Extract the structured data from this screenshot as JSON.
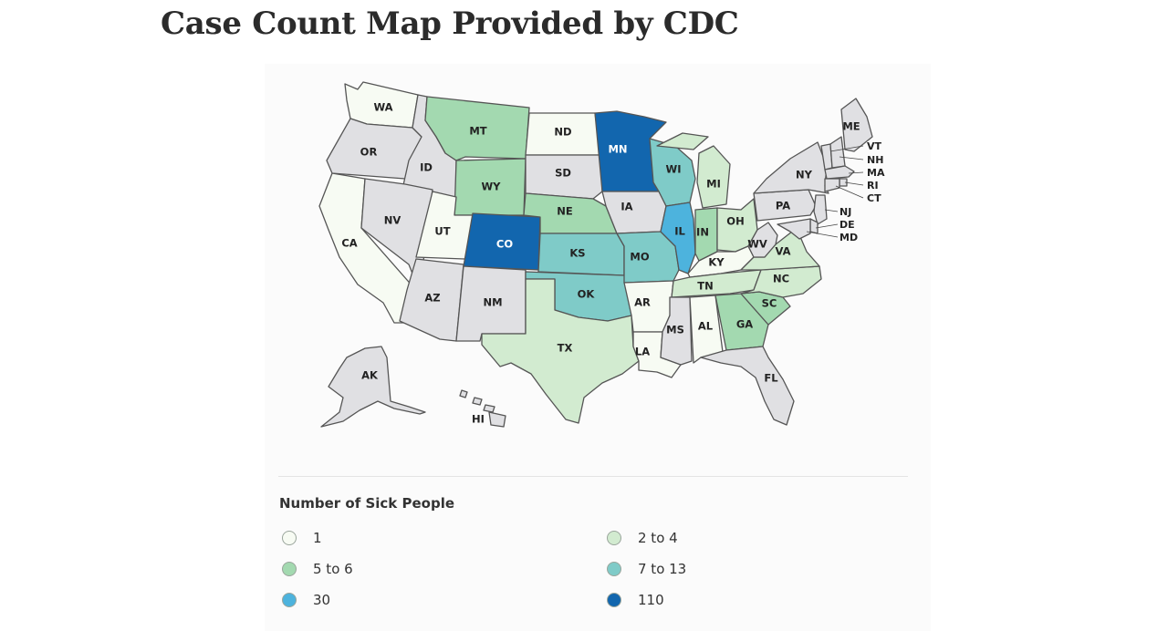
{
  "title": "Case Count Map Provided by CDC",
  "legend": {
    "title": "Number of Sick People",
    "items": [
      {
        "label": "1",
        "color": "#f7fbf3"
      },
      {
        "label": "2 to 4",
        "color": "#d2ebd0"
      },
      {
        "label": "5 to 6",
        "color": "#a3d9b0"
      },
      {
        "label": "7 to 13",
        "color": "#7fcbc8"
      },
      {
        "label": "30",
        "color": "#4db3dd"
      },
      {
        "label": "110",
        "color": "#1266ae"
      }
    ],
    "no_cases_color": "#e0e0e3"
  },
  "states": [
    {
      "abbr": "WA",
      "bin": "1"
    },
    {
      "abbr": "OR",
      "bin": "none"
    },
    {
      "abbr": "CA",
      "bin": "1"
    },
    {
      "abbr": "ID",
      "bin": "none"
    },
    {
      "abbr": "NV",
      "bin": "none"
    },
    {
      "abbr": "MT",
      "bin": "5 to 6"
    },
    {
      "abbr": "WY",
      "bin": "5 to 6"
    },
    {
      "abbr": "UT",
      "bin": "1"
    },
    {
      "abbr": "CO",
      "bin": "110"
    },
    {
      "abbr": "AZ",
      "bin": "none"
    },
    {
      "abbr": "NM",
      "bin": "none"
    },
    {
      "abbr": "ND",
      "bin": "1"
    },
    {
      "abbr": "SD",
      "bin": "none"
    },
    {
      "abbr": "NE",
      "bin": "5 to 6"
    },
    {
      "abbr": "KS",
      "bin": "7 to 13"
    },
    {
      "abbr": "OK",
      "bin": "7 to 13"
    },
    {
      "abbr": "TX",
      "bin": "2 to 4"
    },
    {
      "abbr": "MN",
      "bin": "110"
    },
    {
      "abbr": "IA",
      "bin": "none"
    },
    {
      "abbr": "MO",
      "bin": "7 to 13"
    },
    {
      "abbr": "AR",
      "bin": "1"
    },
    {
      "abbr": "LA",
      "bin": "1"
    },
    {
      "abbr": "WI",
      "bin": "7 to 13"
    },
    {
      "abbr": "IL",
      "bin": "30"
    },
    {
      "abbr": "MI",
      "bin": "2 to 4"
    },
    {
      "abbr": "IN",
      "bin": "5 to 6"
    },
    {
      "abbr": "OH",
      "bin": "2 to 4"
    },
    {
      "abbr": "KY",
      "bin": "1"
    },
    {
      "abbr": "TN",
      "bin": "2 to 4"
    },
    {
      "abbr": "MS",
      "bin": "none"
    },
    {
      "abbr": "AL",
      "bin": "1"
    },
    {
      "abbr": "GA",
      "bin": "5 to 6"
    },
    {
      "abbr": "FL",
      "bin": "none"
    },
    {
      "abbr": "SC",
      "bin": "5 to 6"
    },
    {
      "abbr": "NC",
      "bin": "2 to 4"
    },
    {
      "abbr": "VA",
      "bin": "2 to 4"
    },
    {
      "abbr": "WV",
      "bin": "none"
    },
    {
      "abbr": "PA",
      "bin": "none"
    },
    {
      "abbr": "NY",
      "bin": "none"
    },
    {
      "abbr": "ME",
      "bin": "none"
    },
    {
      "abbr": "VT",
      "bin": "none"
    },
    {
      "abbr": "NH",
      "bin": "none"
    },
    {
      "abbr": "MA",
      "bin": "none"
    },
    {
      "abbr": "RI",
      "bin": "none"
    },
    {
      "abbr": "CT",
      "bin": "none"
    },
    {
      "abbr": "NJ",
      "bin": "none"
    },
    {
      "abbr": "DE",
      "bin": "none"
    },
    {
      "abbr": "MD",
      "bin": "none"
    },
    {
      "abbr": "AK",
      "bin": "none"
    },
    {
      "abbr": "HI",
      "bin": "none"
    }
  ]
}
